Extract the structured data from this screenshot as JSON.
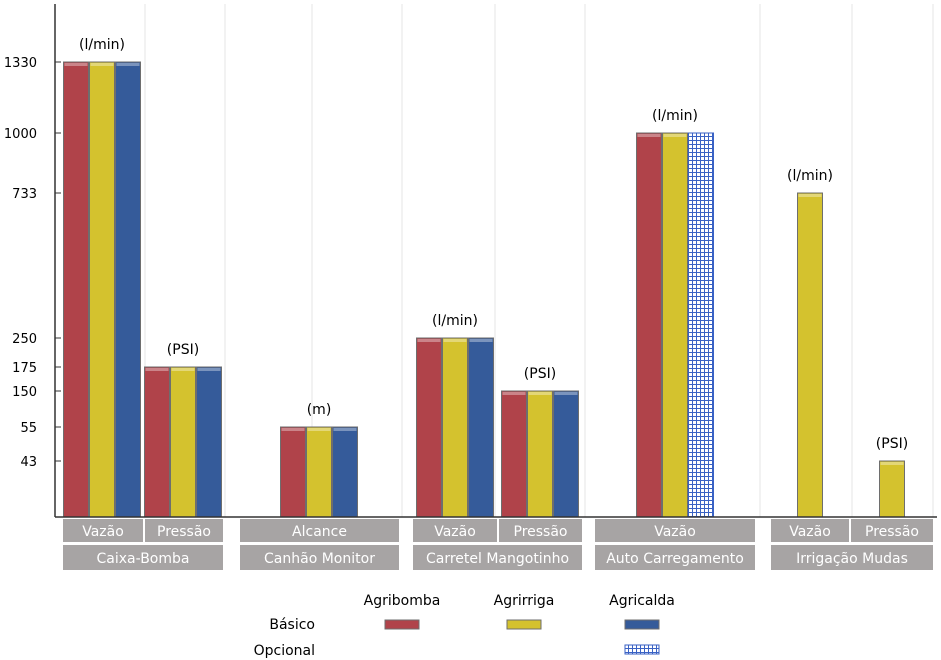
{
  "chart_data": {
    "type": "bar",
    "y_ticks": [
      43,
      55,
      150,
      175,
      250,
      733,
      1000,
      1330
    ],
    "groups": [
      {
        "name": "Caixa-Bomba",
        "subgroups": [
          {
            "label": "Vazão",
            "unit": "(l/min)",
            "values": {
              "Agribomba": 1330,
              "Agrirriga": 1330,
              "Agricalda": 1330
            }
          },
          {
            "label": "Pressão",
            "unit": "(PSI)",
            "values": {
              "Agribomba": 175,
              "Agrirriga": 175,
              "Agricalda": 175
            }
          }
        ]
      },
      {
        "name": "Canhão Monitor",
        "subgroups": [
          {
            "label": "Alcance",
            "unit": "(m)",
            "values": {
              "Agribomba": 55,
              "Agrirriga": 55,
              "Agricalda": 55
            }
          }
        ]
      },
      {
        "name": "Carretel Mangotinho",
        "subgroups": [
          {
            "label": "Vazão",
            "unit": "(l/min)",
            "values": {
              "Agribomba": 250,
              "Agrirriga": 250,
              "Agricalda": 250
            }
          },
          {
            "label": "Pressão",
            "unit": "(PSI)",
            "values": {
              "Agribomba": 150,
              "Agrirriga": 150,
              "Agricalda": 150
            }
          }
        ]
      },
      {
        "name": "Auto Carregamento",
        "subgroups": [
          {
            "label": "Vazão",
            "unit": "(l/min)",
            "values": {
              "Agribomba": 1000,
              "Agrirriga": 1000,
              "Agricalda": 1000
            },
            "optional": [
              "Agricalda"
            ]
          }
        ]
      },
      {
        "name": "Irrigação Mudas",
        "subgroups": [
          {
            "label": "Vazão",
            "unit": "(l/min)",
            "values": {
              "Agrirriga": 733
            }
          },
          {
            "label": "Pressão",
            "unit": "(PSI)",
            "values": {
              "Agrirriga": 43
            }
          }
        ]
      }
    ],
    "series": [
      {
        "name": "Agribomba",
        "color": "#b0434a"
      },
      {
        "name": "Agrirriga",
        "color": "#d4c22e"
      },
      {
        "name": "Agricalda",
        "color": "#355b9a"
      }
    ],
    "legend": {
      "rows": [
        "Básico",
        "Opcional"
      ],
      "placement": "bottom"
    }
  }
}
